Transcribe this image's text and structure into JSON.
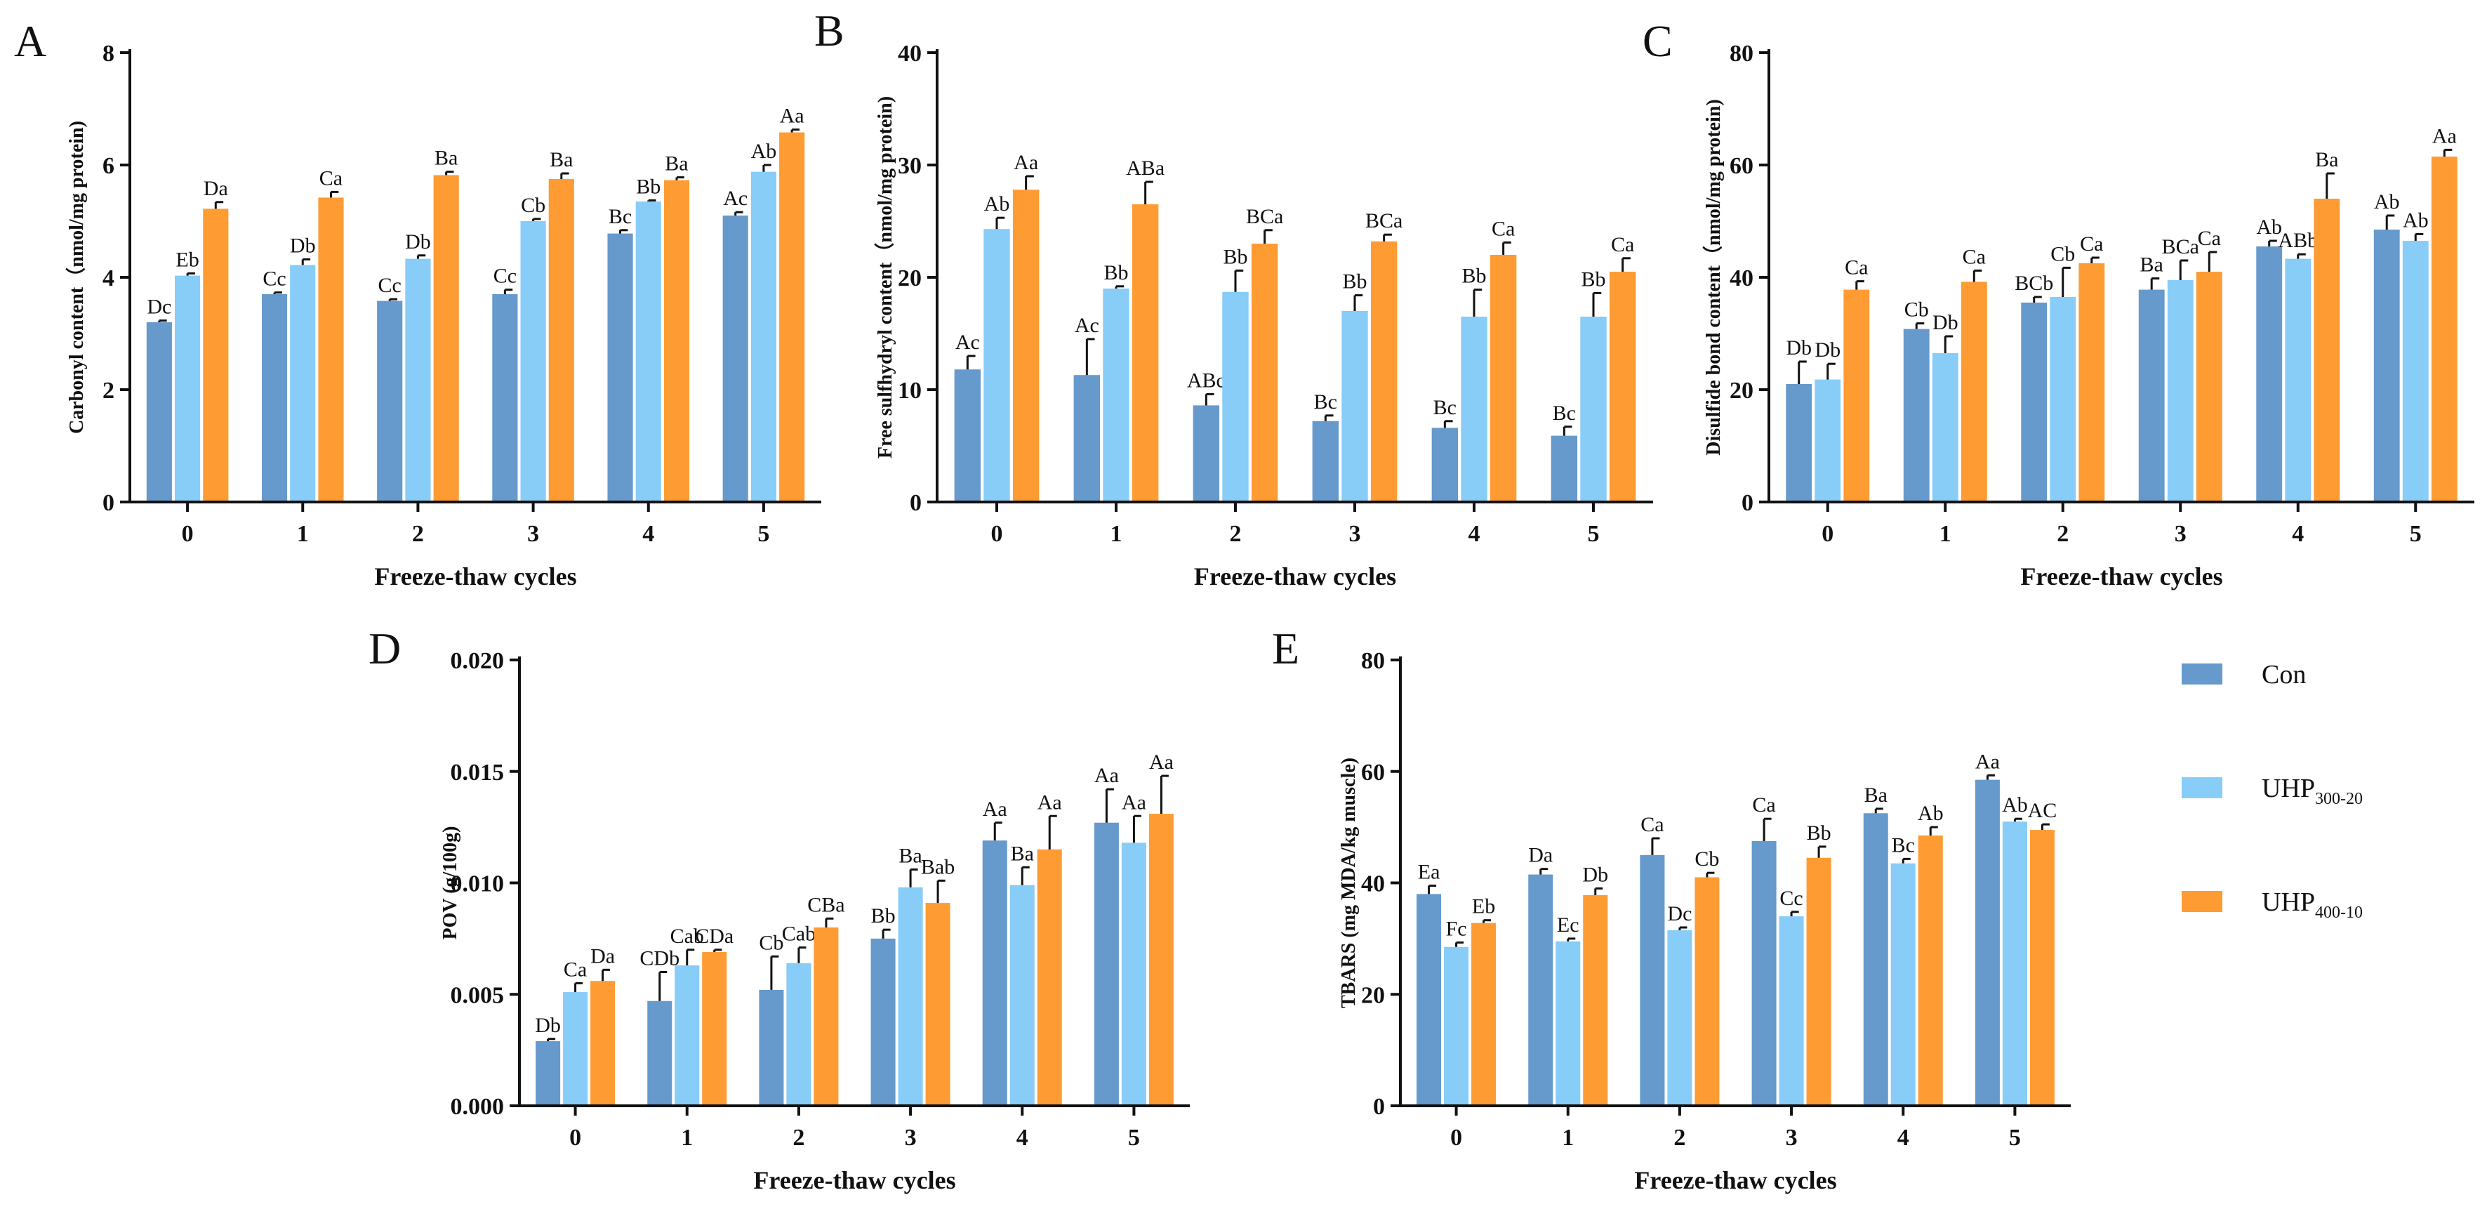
{
  "legend": [
    {
      "base": "Con",
      "sub": "",
      "color": "#6699cc"
    },
    {
      "base": "UHP",
      "sub": "300-20",
      "color": "#88ccf8"
    },
    {
      "base": "UHP",
      "sub": "400-10",
      "color": "#ff9b33"
    }
  ],
  "chart_data": [
    {
      "panel": "A",
      "type": "bar",
      "ylabel": "Carbonyl content（nmol/mg protein)",
      "xlabel": "Freeze-thaw cycles",
      "categories": [
        "0",
        "1",
        "2",
        "3",
        "4",
        "5"
      ],
      "ylim": [
        0,
        8
      ],
      "yticks": [
        "0",
        "2",
        "4",
        "6",
        "8"
      ],
      "series": [
        {
          "name": "Con",
          "values": [
            3.2,
            3.7,
            3.58,
            3.7,
            4.78,
            5.1
          ],
          "errors": [
            0.03,
            0.03,
            0.03,
            0.08,
            0.06,
            0.06
          ],
          "labels": [
            "Dc",
            "Cc",
            "Cc",
            "Cc",
            "Bc",
            "Ac"
          ]
        },
        {
          "name": "UHP300-20",
          "values": [
            4.03,
            4.22,
            4.33,
            5.0,
            5.35,
            5.88
          ],
          "errors": [
            0.04,
            0.1,
            0.06,
            0.04,
            0.02,
            0.12
          ],
          "labels": [
            "Eb",
            "Db",
            "Db",
            "Cb",
            "Bb",
            "Ab"
          ]
        },
        {
          "name": "UHP400-10",
          "values": [
            5.22,
            5.42,
            5.82,
            5.75,
            5.73,
            6.58
          ],
          "errors": [
            0.12,
            0.1,
            0.06,
            0.1,
            0.05,
            0.05
          ],
          "labels": [
            "Da",
            "Ca",
            "Ba",
            "Ba",
            "Ba",
            "Aa"
          ]
        }
      ]
    },
    {
      "panel": "B",
      "type": "bar",
      "ylabel": "Free sulfhydryl content（nmol/mg protein)",
      "xlabel": "Freeze-thaw cycles",
      "categories": [
        "0",
        "1",
        "2",
        "3",
        "4",
        "5"
      ],
      "ylim": [
        0,
        40
      ],
      "yticks": [
        "0",
        "10",
        "20",
        "30",
        "40"
      ],
      "series": [
        {
          "name": "Con",
          "values": [
            11.8,
            11.3,
            8.6,
            7.2,
            6.6,
            5.9
          ],
          "errors": [
            1.2,
            3.2,
            1.0,
            0.5,
            0.6,
            0.8
          ],
          "labels": [
            "Ac",
            "Ac",
            "ABc",
            "Bc",
            "Bc",
            "Bc"
          ]
        },
        {
          "name": "UHP300-20",
          "values": [
            24.3,
            19.0,
            18.7,
            17.0,
            16.5,
            16.5
          ],
          "errors": [
            1.0,
            0.2,
            1.9,
            1.4,
            2.4,
            2.1
          ],
          "labels": [
            "Ab",
            "Bb",
            "Bb",
            "Bb",
            "Bb",
            "Bb"
          ]
        },
        {
          "name": "UHP400-10",
          "values": [
            27.8,
            26.5,
            23.0,
            23.2,
            22.0,
            20.5
          ],
          "errors": [
            1.2,
            2.0,
            1.2,
            0.6,
            1.1,
            1.2
          ],
          "labels": [
            "Aa",
            "ABa",
            "BCa",
            "BCa",
            "Ca",
            "Ca"
          ]
        }
      ]
    },
    {
      "panel": "C",
      "type": "bar",
      "ylabel": "Disulfide bond content（nmol/mg protein)",
      "xlabel": "Freeze-thaw cycles",
      "categories": [
        "0",
        "1",
        "2",
        "3",
        "4",
        "5"
      ],
      "ylim": [
        0,
        80
      ],
      "yticks": [
        "0",
        "20",
        "40",
        "60",
        "80"
      ],
      "series": [
        {
          "name": "Con",
          "values": [
            21.0,
            30.8,
            35.5,
            37.8,
            45.5,
            48.5
          ],
          "errors": [
            4.0,
            1.0,
            1.0,
            2.0,
            1.0,
            2.5
          ],
          "labels": [
            "Db",
            "Cb",
            "BCb",
            "Ba",
            "Ab",
            "Ab"
          ]
        },
        {
          "name": "UHP300-20",
          "values": [
            21.8,
            26.5,
            36.5,
            39.5,
            43.3,
            46.5
          ],
          "errors": [
            2.8,
            3.0,
            5.2,
            3.5,
            0.8,
            1.2
          ],
          "labels": [
            "Db",
            "Db",
            "Cb",
            "BCa",
            "ABb",
            "Ab"
          ]
        },
        {
          "name": "UHP400-10",
          "values": [
            37.8,
            39.2,
            42.5,
            41.0,
            54.0,
            61.5
          ],
          "errors": [
            1.5,
            2.0,
            1.0,
            3.5,
            4.5,
            1.2
          ],
          "labels": [
            "Ca",
            "Ca",
            "Ca",
            "Ca",
            "Ba",
            "Aa"
          ]
        }
      ]
    },
    {
      "panel": "D",
      "type": "bar",
      "ylabel": "POV (g/100g)",
      "xlabel": "Freeze-thaw cycles",
      "categories": [
        "0",
        "1",
        "2",
        "3",
        "4",
        "5"
      ],
      "ylim": [
        0,
        0.02
      ],
      "yticks": [
        "0.000",
        "0.005",
        "0.010",
        "0.015",
        "0.020"
      ],
      "series": [
        {
          "name": "Con",
          "values": [
            0.0029,
            0.0047,
            0.0052,
            0.0075,
            0.0119,
            0.0127
          ],
          "errors": [
            0.0001,
            0.0013,
            0.0015,
            0.0004,
            0.0008,
            0.0015
          ],
          "labels": [
            "Db",
            "CDb",
            "Cb",
            "Bb",
            "Aa",
            "Aa"
          ]
        },
        {
          "name": "UHP300-20",
          "values": [
            0.0051,
            0.0063,
            0.0064,
            0.0098,
            0.0099,
            0.0118
          ],
          "errors": [
            0.0004,
            0.0007,
            0.0007,
            0.0008,
            0.0008,
            0.0012
          ],
          "labels": [
            "Ca",
            "Cab",
            "Cab",
            "Ba",
            "Ba",
            "Aa"
          ]
        },
        {
          "name": "UHP400-10",
          "values": [
            0.0056,
            0.0069,
            0.008,
            0.0091,
            0.0115,
            0.0131
          ],
          "errors": [
            0.0005,
            0.0001,
            0.0004,
            0.001,
            0.0015,
            0.0017
          ],
          "labels": [
            "Da",
            "CDa",
            "CBa",
            "Bab",
            "Aa",
            "Aa"
          ]
        }
      ]
    },
    {
      "panel": "E",
      "type": "bar",
      "ylabel": "TBARS (mg MDA/kg muscle)",
      "xlabel": "Freeze-thaw cycles",
      "categories": [
        "0",
        "1",
        "2",
        "3",
        "4",
        "5"
      ],
      "ylim": [
        0,
        80
      ],
      "yticks": [
        "0",
        "20",
        "40",
        "60",
        "80"
      ],
      "series": [
        {
          "name": "Con",
          "values": [
            38.0,
            41.5,
            45.0,
            47.5,
            52.5,
            58.5
          ],
          "errors": [
            1.5,
            1.0,
            3.0,
            4.0,
            0.8,
            0.8
          ],
          "labels": [
            "Ea",
            "Da",
            "Ca",
            "Ca",
            "Ba",
            "Aa"
          ]
        },
        {
          "name": "UHP300-20",
          "values": [
            28.5,
            29.5,
            31.5,
            34.0,
            43.5,
            51.0
          ],
          "errors": [
            0.8,
            0.5,
            0.5,
            0.8,
            0.8,
            0.5
          ],
          "labels": [
            "Fc",
            "Ec",
            "Dc",
            "Cc",
            "Bc",
            "Ab"
          ]
        },
        {
          "name": "UHP400-10",
          "values": [
            32.8,
            37.8,
            41.0,
            44.5,
            48.5,
            49.5
          ],
          "errors": [
            0.5,
            1.2,
            0.8,
            2.0,
            1.5,
            1.0
          ],
          "labels": [
            "Eb",
            "Db",
            "Cb",
            "Bb",
            "Ab",
            "AC"
          ]
        }
      ]
    }
  ]
}
